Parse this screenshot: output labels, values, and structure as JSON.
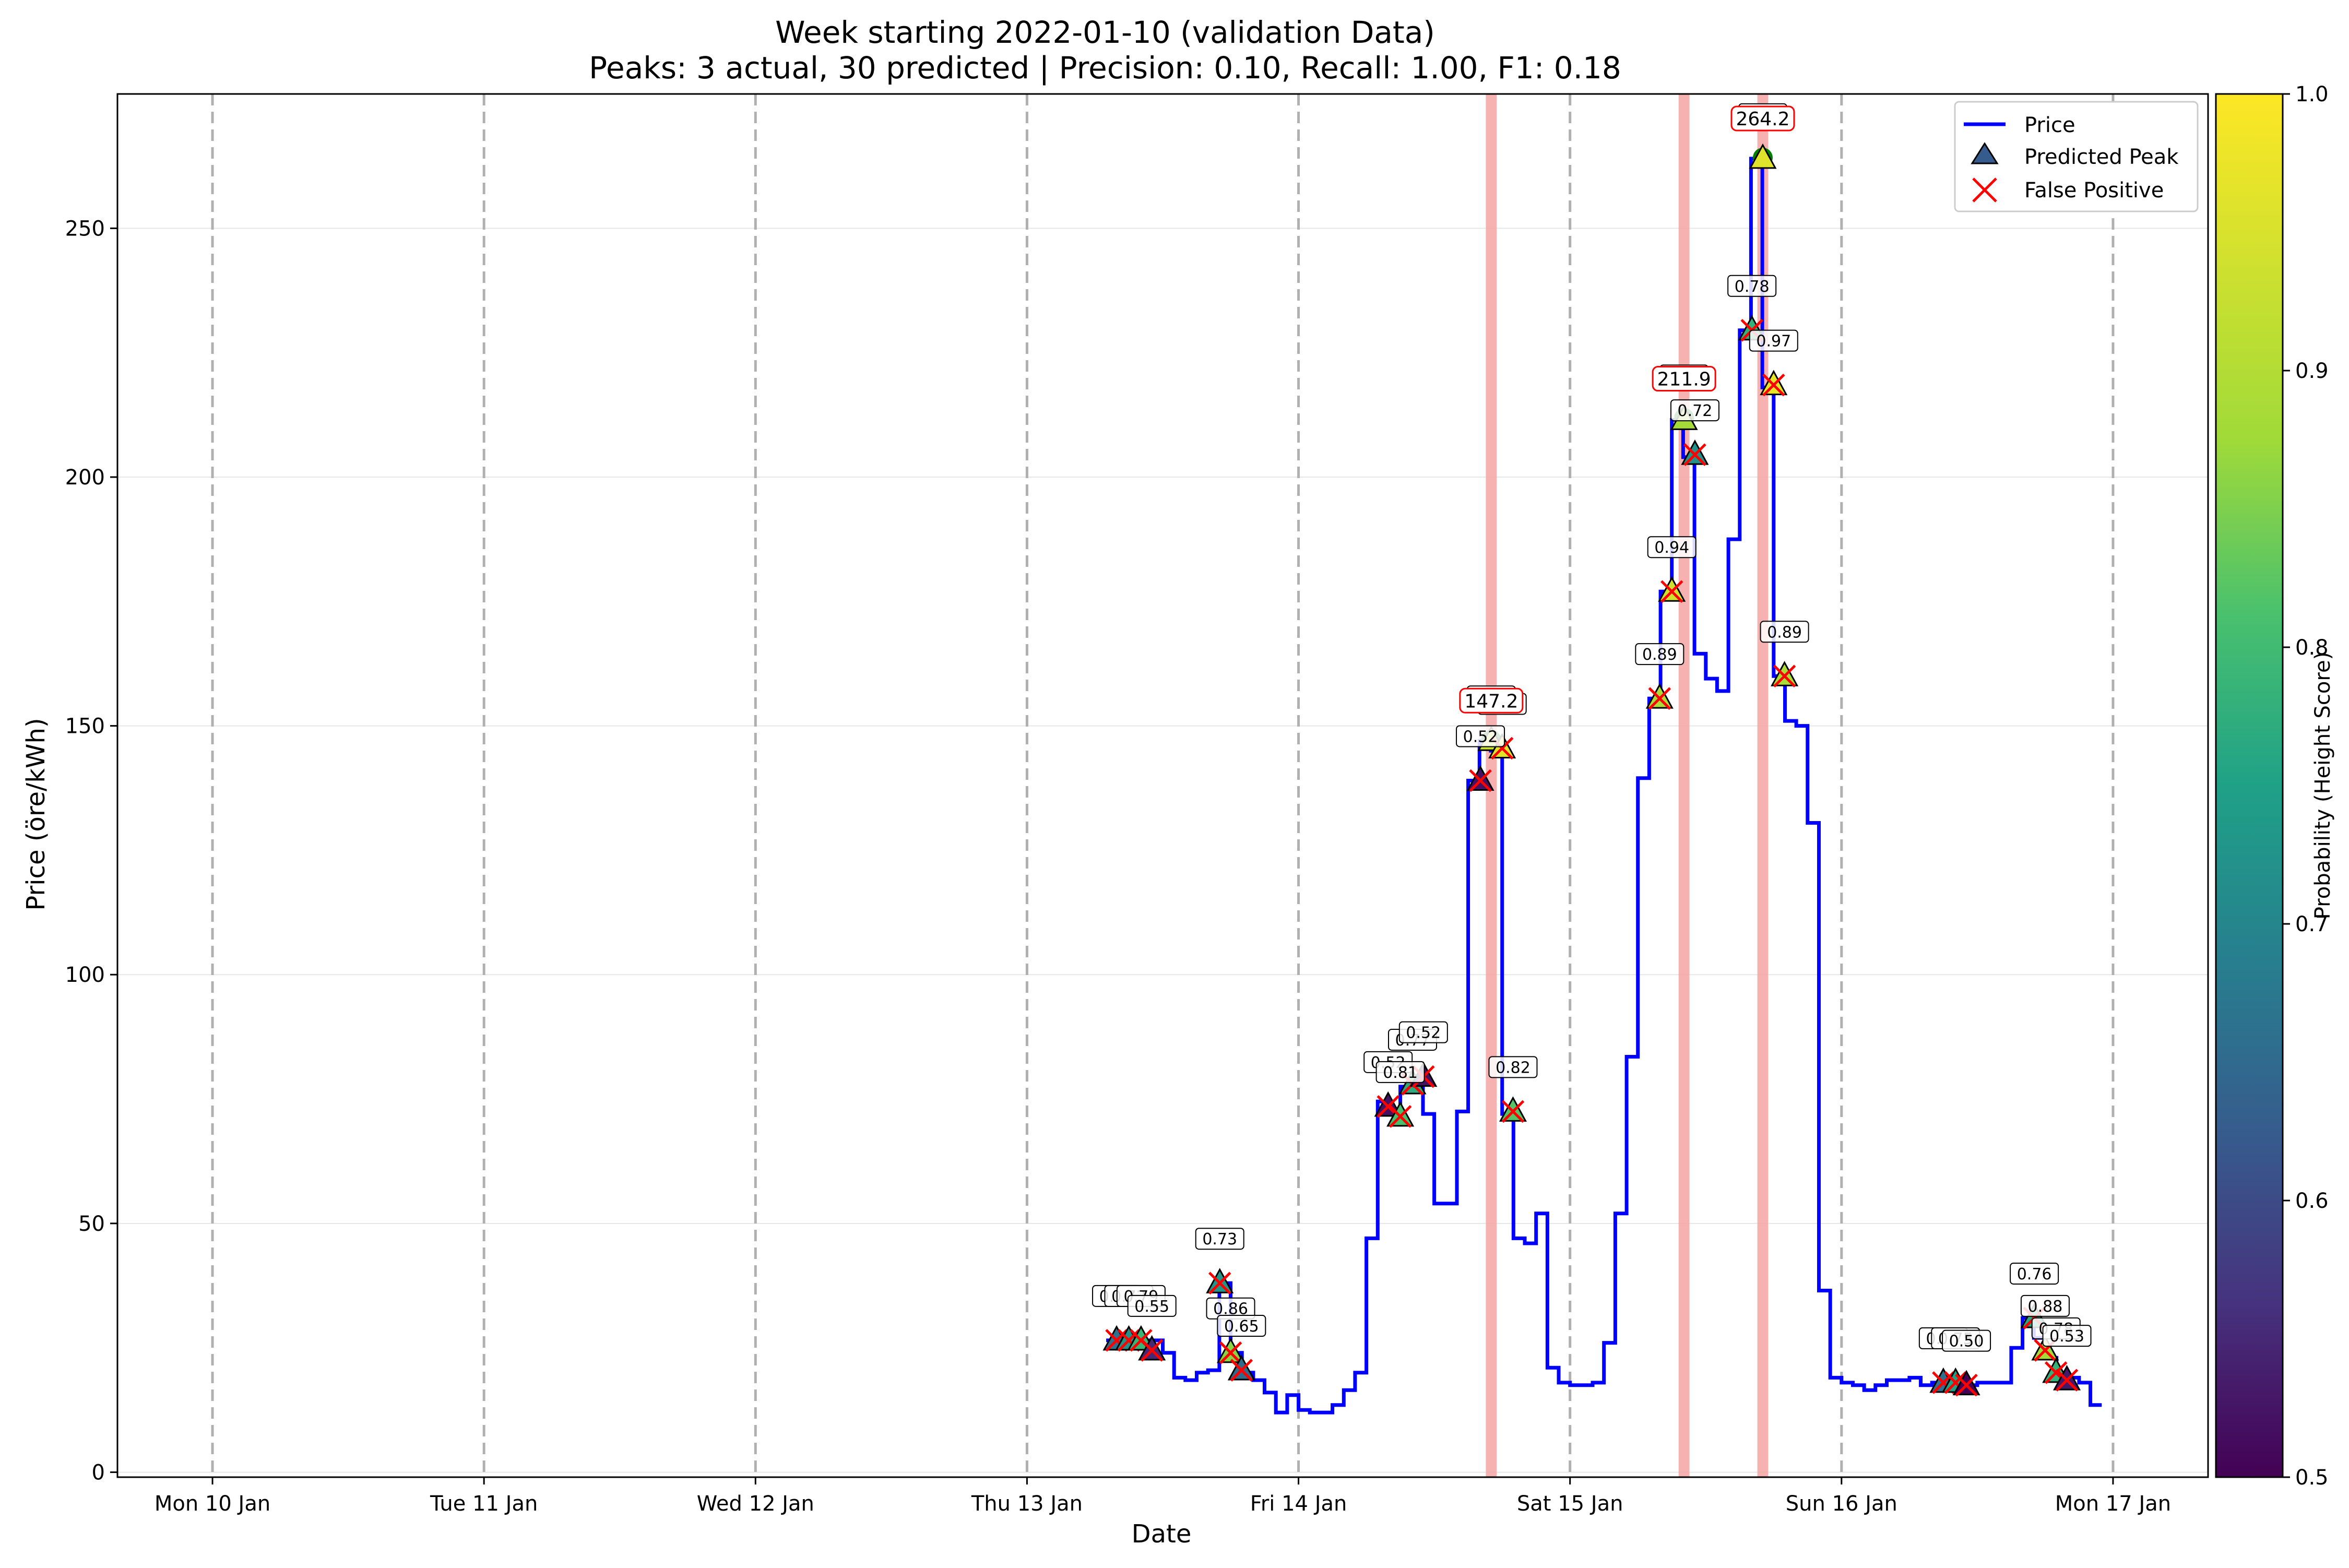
{
  "chart_data": {
    "type": "line",
    "title": "Week starting 2022-01-10 (validation Data)",
    "subtitle": "Peaks: 3 actual, 30 predicted | Precision: 0.10, Recall: 1.00, F1: 0.18",
    "xlabel": "Date",
    "ylabel": "Price (öre/kWh)",
    "x_tick_labels": [
      "Mon 10 Jan",
      "Tue 11 Jan",
      "Wed 12 Jan",
      "Thu 13 Jan",
      "Fri 14 Jan",
      "Sat 15 Jan",
      "Sun 16 Jan",
      "Mon 17 Jan"
    ],
    "x_range_days": [
      -0.35,
      7.35
    ],
    "ylim": [
      -1,
      277
    ],
    "y_ticks": [
      0,
      50,
      100,
      150,
      200,
      250
    ],
    "grid": "horizontal",
    "legend_position": "upper right",
    "legend": [
      "Price",
      "Predicted Peak",
      "False Positive"
    ],
    "colorbar": {
      "label": "Probability (Height Score)",
      "range": [
        0.5,
        1.0
      ],
      "ticks": [
        "0.5",
        "0.6",
        "0.7",
        "0.8",
        "0.9",
        "1.0"
      ],
      "colormap": "viridis"
    },
    "colors": {
      "price_line": "#0000ff",
      "false_positive": "#ff0000",
      "actual_peak_band": "#f4a3a3",
      "actual_peak_marker": "#008000",
      "day_separator": "#b0b0b0"
    },
    "price_series": {
      "name": "Price",
      "start_hour_offset": 79,
      "values": [
        26.5,
        26.5,
        26.5,
        26.5,
        26.5,
        24,
        19,
        18.5,
        20,
        20.5,
        38,
        24,
        20,
        18.5,
        16,
        12,
        15.5,
        12.5,
        12,
        12,
        13.5,
        16.5,
        20,
        47,
        74.5,
        72,
        77.5,
        79,
        72,
        54,
        54,
        72.5,
        139,
        147,
        145,
        72,
        47,
        46,
        52,
        21,
        18,
        17.5,
        17.5,
        18,
        26,
        52,
        83.5,
        139.5,
        155.5,
        177,
        211.5,
        204,
        164.5,
        159.5,
        157,
        187.5,
        229.5,
        264,
        218,
        160,
        151,
        150,
        130.5,
        36.5,
        19,
        18,
        17.5,
        16.5,
        17.5,
        18.5,
        18.5,
        19,
        17.5,
        18,
        18,
        17,
        17.5,
        18,
        18,
        18,
        25,
        31,
        27,
        23,
        20,
        19,
        18,
        13.5
      ]
    },
    "actual_peaks": [
      {
        "day": 4.71,
        "value": 147.2,
        "label": "147.2"
      },
      {
        "day": 5.42,
        "value": 211.9,
        "label": "211.9"
      },
      {
        "day": 5.71,
        "value": 264.2,
        "label": "264.2"
      }
    ],
    "predicted_peaks": [
      {
        "day": 3.33,
        "value": 26.5,
        "prob": 0.66,
        "label": "0.66",
        "fp": true
      },
      {
        "day": 3.375,
        "value": 26.5,
        "prob": 0.72,
        "label": "0.72",
        "fp": true
      },
      {
        "day": 3.42,
        "value": 26.5,
        "prob": 0.79,
        "label": "0.79",
        "fp": true
      },
      {
        "day": 3.46,
        "value": 24.5,
        "prob": 0.55,
        "label": "0.55",
        "fp": true
      },
      {
        "day": 3.71,
        "value": 38,
        "prob": 0.73,
        "label": "0.73",
        "fp": true
      },
      {
        "day": 3.75,
        "value": 24,
        "prob": 0.86,
        "label": "0.86",
        "fp": true
      },
      {
        "day": 3.79,
        "value": 20.5,
        "prob": 0.65,
        "label": "0.65",
        "fp": true
      },
      {
        "day": 4.33,
        "value": 73.5,
        "prob": 0.52,
        "label": "0.52",
        "fp": true
      },
      {
        "day": 4.375,
        "value": 71.5,
        "prob": 0.81,
        "label": "0.81",
        "fp": true
      },
      {
        "day": 4.42,
        "value": 78,
        "prob": 0.77,
        "label": "0.77",
        "fp": true
      },
      {
        "day": 4.46,
        "value": 79.5,
        "prob": 0.52,
        "label": "0.52",
        "fp": true
      },
      {
        "day": 4.67,
        "value": 139,
        "prob": 0.52,
        "label": "0.52",
        "fp": true
      },
      {
        "day": 4.71,
        "value": 147,
        "prob": 0.93,
        "label": "0.93",
        "fp": false
      },
      {
        "day": 4.75,
        "value": 145.5,
        "prob": 0.96,
        "label": "0.96",
        "fp": true
      },
      {
        "day": 4.79,
        "value": 72.5,
        "prob": 0.82,
        "label": "0.82",
        "fp": true
      },
      {
        "day": 5.33,
        "value": 155.5,
        "prob": 0.89,
        "label": "0.89",
        "fp": true
      },
      {
        "day": 5.375,
        "value": 177,
        "prob": 0.94,
        "label": "0.94",
        "fp": true
      },
      {
        "day": 5.42,
        "value": 211.5,
        "prob": 0.88,
        "label": "0.88",
        "fp": false
      },
      {
        "day": 5.46,
        "value": 204.5,
        "prob": 0.72,
        "label": "0.72",
        "fp": true
      },
      {
        "day": 5.67,
        "value": 229.5,
        "prob": 0.78,
        "label": "0.78",
        "fp": true
      },
      {
        "day": 5.71,
        "value": 264,
        "prob": 0.96,
        "label": "0.96",
        "fp": false
      },
      {
        "day": 5.75,
        "value": 218.5,
        "prob": 0.97,
        "label": "0.97",
        "fp": true
      },
      {
        "day": 5.79,
        "value": 160,
        "prob": 0.89,
        "label": "0.89",
        "fp": true
      },
      {
        "day": 6.375,
        "value": 18,
        "prob": 0.66,
        "label": "0.66",
        "fp": true
      },
      {
        "day": 6.42,
        "value": 18,
        "prob": 0.75,
        "label": "0.75",
        "fp": true
      },
      {
        "day": 6.46,
        "value": 17.5,
        "prob": 0.5,
        "label": "0.50",
        "fp": true
      },
      {
        "day": 6.71,
        "value": 31,
        "prob": 0.76,
        "label": "0.76",
        "fp": true
      },
      {
        "day": 6.75,
        "value": 24.5,
        "prob": 0.88,
        "label": "0.88",
        "fp": true
      },
      {
        "day": 6.79,
        "value": 20,
        "prob": 0.78,
        "label": "0.78",
        "fp": true
      },
      {
        "day": 6.83,
        "value": 18.5,
        "prob": 0.53,
        "label": "0.53",
        "fp": true
      }
    ]
  }
}
